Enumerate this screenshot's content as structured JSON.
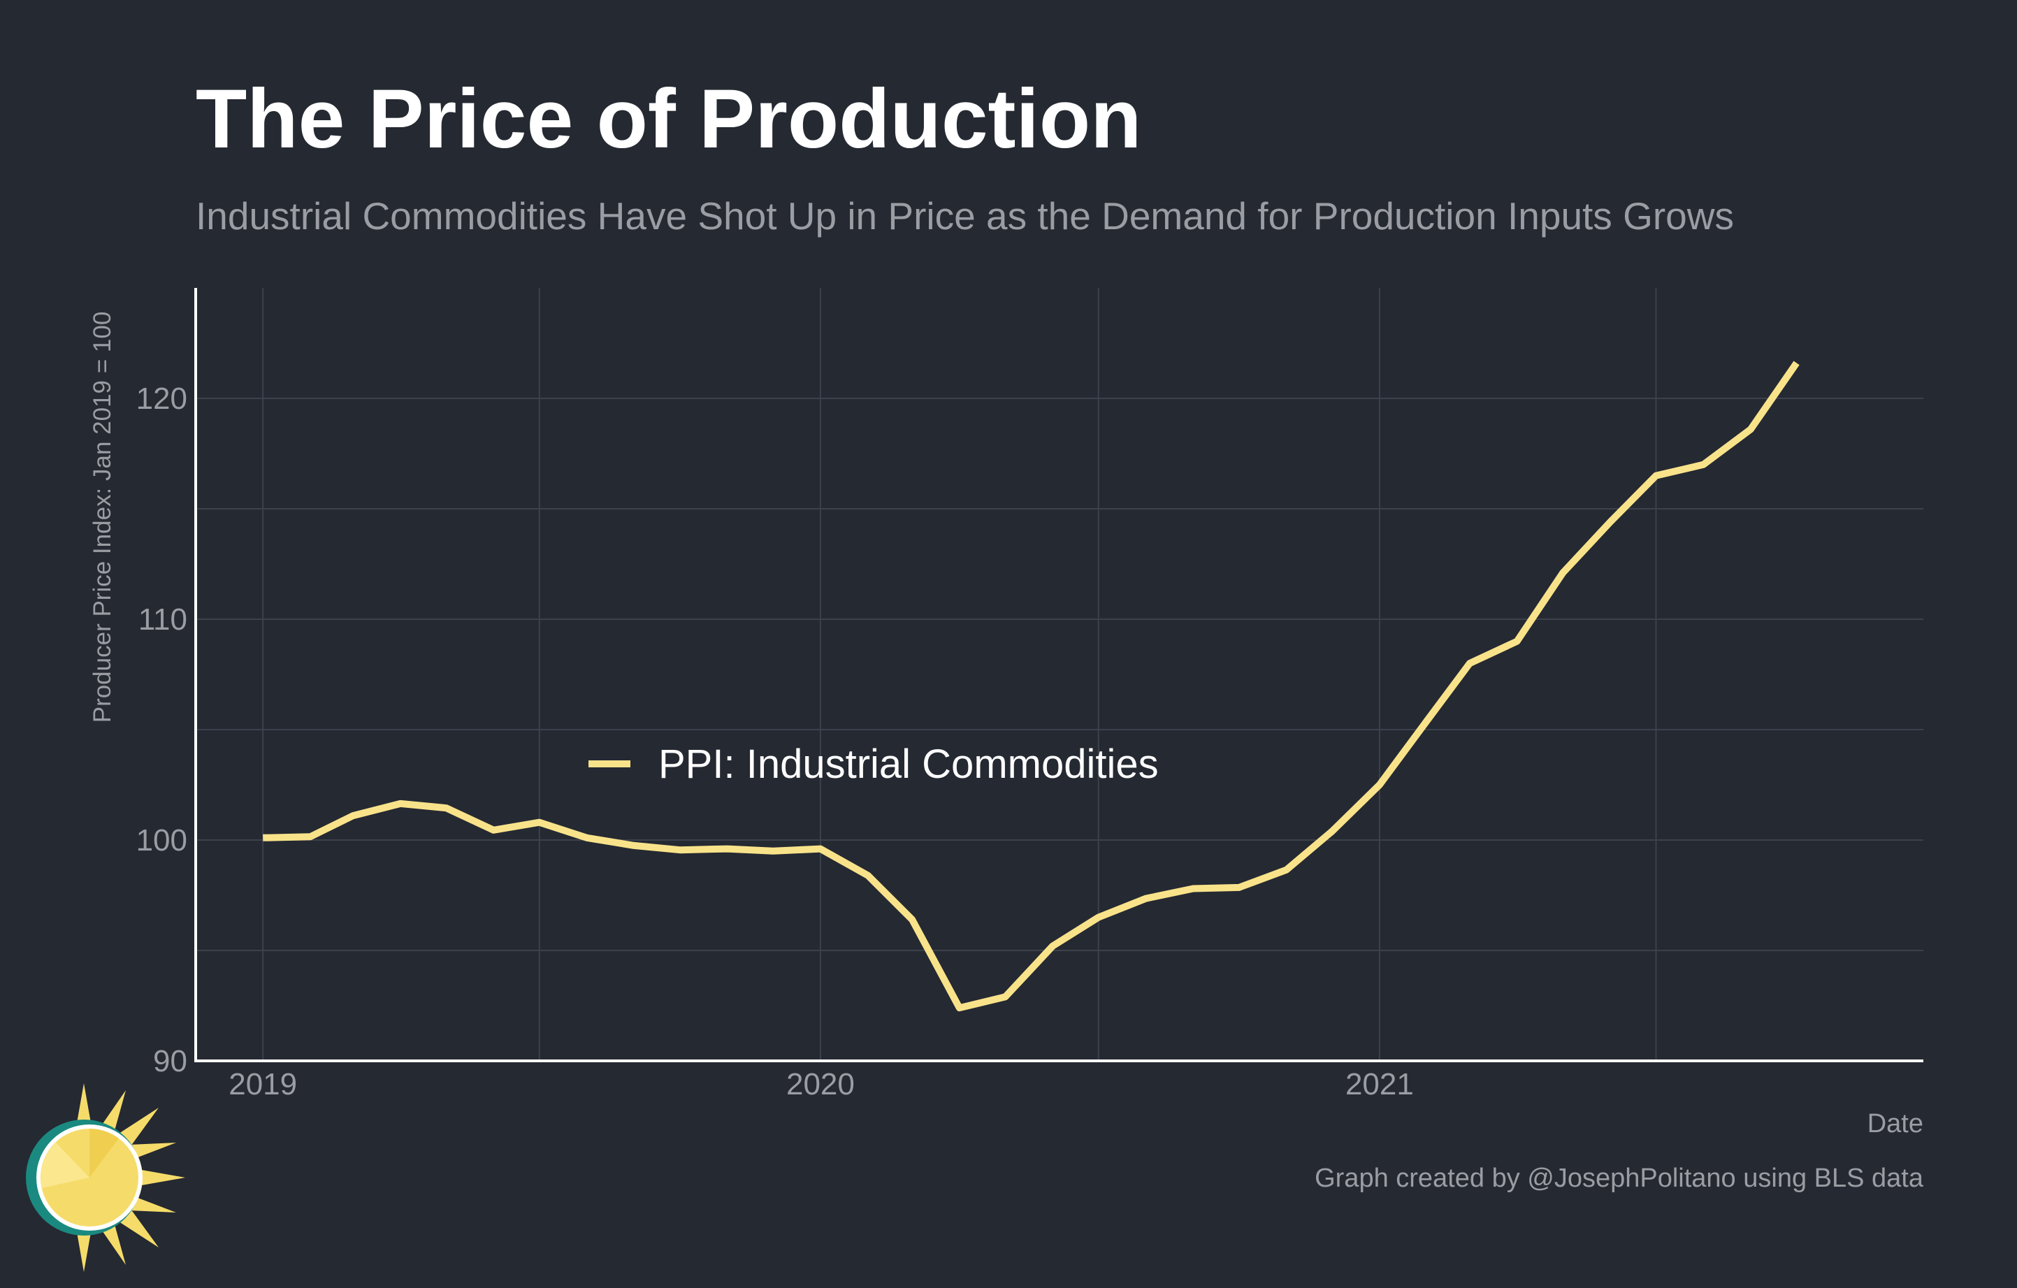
{
  "header": {
    "title": "The Price of Production",
    "subtitle": "Industrial Commodities Have Shot Up in Price as the Demand for Production Inputs Grows"
  },
  "footer": {
    "credit": "Graph created by @JosephPolitano using BLS data"
  },
  "logo": {
    "icon": "sun-logo-icon"
  },
  "chart_data": {
    "type": "line",
    "xlabel": "Date",
    "ylabel": "Producer Price Index: Jan 2019 = 100",
    "xlim": [
      "2018-11-18",
      "2021-12-23"
    ],
    "ylim": [
      90,
      125
    ],
    "x_ticks": [
      "2019",
      "2020",
      "2021"
    ],
    "x_tick_dates": [
      "2019-01-01",
      "2020-01-01",
      "2021-01-01"
    ],
    "x_minor_tick_dates": [
      "2019-07-01",
      "2020-07-01",
      "2021-07-01"
    ],
    "y_ticks": [
      90,
      100,
      110,
      120
    ],
    "y_minor_ticks": [
      95,
      105,
      115
    ],
    "grid": true,
    "legend_position": "center-left",
    "colors": {
      "line": "#f9e38a",
      "background": "#252932",
      "grid": "#3c414b"
    },
    "series": [
      {
        "name": "PPI: Industrial Commodities",
        "color": "#f9e38a",
        "x": [
          "2019-01-01",
          "2019-02-01",
          "2019-03-01",
          "2019-04-01",
          "2019-05-01",
          "2019-06-01",
          "2019-07-01",
          "2019-08-01",
          "2019-09-01",
          "2019-10-01",
          "2019-11-01",
          "2019-12-01",
          "2020-01-01",
          "2020-02-01",
          "2020-03-01",
          "2020-04-01",
          "2020-05-01",
          "2020-06-01",
          "2020-07-01",
          "2020-08-01",
          "2020-09-01",
          "2020-10-01",
          "2020-11-01",
          "2020-12-01",
          "2021-01-01",
          "2021-02-01",
          "2021-03-01",
          "2021-04-01",
          "2021-05-01",
          "2021-06-01",
          "2021-07-01",
          "2021-08-01",
          "2021-09-01",
          "2021-10-01"
        ],
        "values": [
          100.1,
          100.15,
          101.1,
          101.65,
          101.45,
          100.45,
          100.8,
          100.1,
          99.75,
          99.55,
          99.6,
          99.5,
          99.6,
          98.4,
          96.4,
          92.4,
          92.9,
          95.2,
          96.5,
          97.35,
          97.8,
          97.85,
          98.65,
          100.4,
          102.5,
          105.4,
          108.0,
          109.0,
          112.1,
          114.4,
          116.5,
          117.0,
          118.6,
          121.6
        ]
      }
    ]
  }
}
